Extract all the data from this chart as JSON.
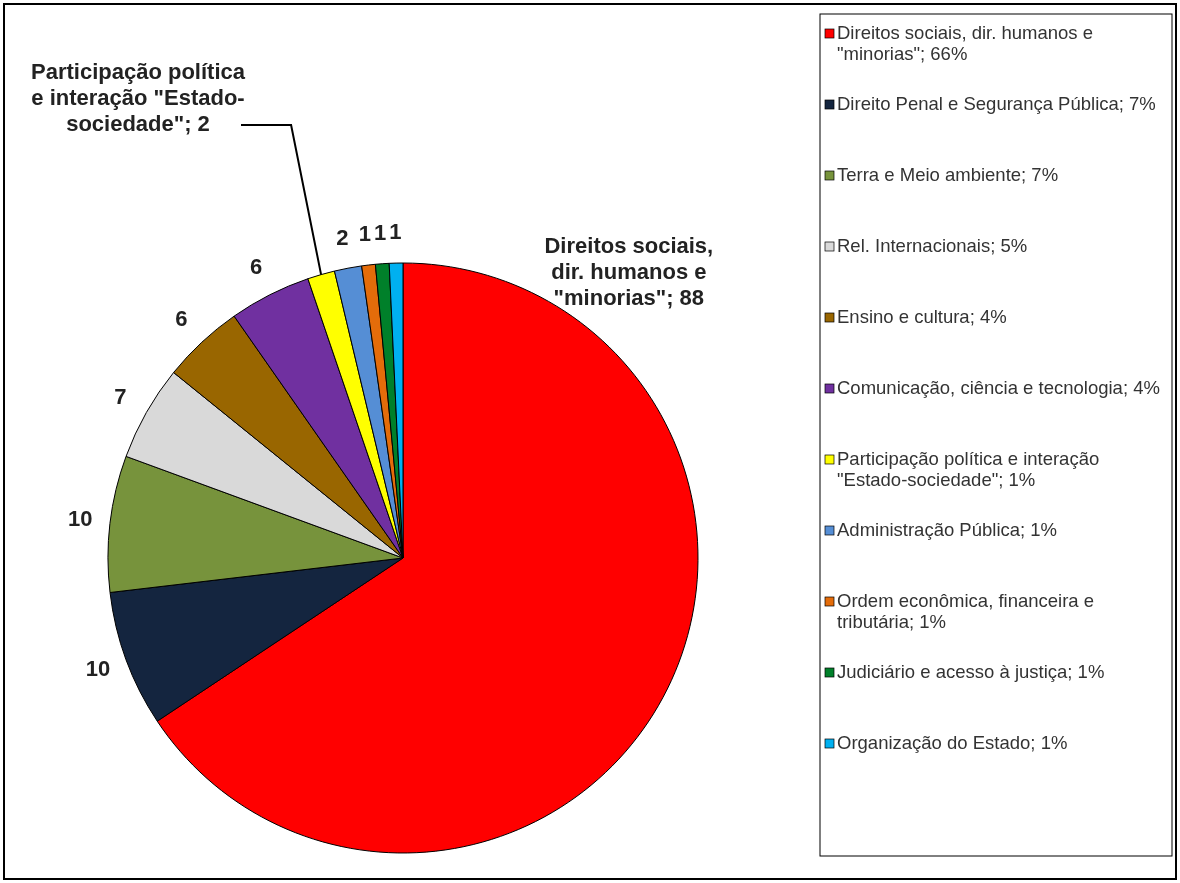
{
  "chart_data": {
    "type": "pie",
    "categories": [
      "Direitos sociais, dir. humanos e \"minorias\"; 66%",
      "Direito Penal e Segurança Pública; 7%",
      "Terra e Meio ambiente; 7%",
      "Rel. Internacionais; 5%",
      "Ensino e cultura; 4%",
      "Comunicação, ciência e tecnologia; 4%",
      "Participação política e interação \"Estado-sociedade\"; 1%",
      "Administração Pública; 1%",
      "Ordem econômica, financeira e tributária; 1%",
      "Judiciário e acesso à justiça; 1%",
      "Organização do Estado; 1%"
    ],
    "values": [
      88,
      10,
      10,
      7,
      6,
      6,
      2,
      2,
      1,
      1,
      1
    ],
    "colors": [
      "#ff0000",
      "#14253f",
      "#77933c",
      "#d9d9d9",
      "#996600",
      "#7030a0",
      "#ffff00",
      "#558ed5",
      "#e46c0a",
      "#00802a",
      "#00b0f0"
    ],
    "value_labels": [
      "Direitos sociais, dir. humanos e \"minorias\"; 88",
      "10",
      "10",
      "7",
      "6",
      "6",
      "Participação política e interação \"Estado-sociedade\"; 2",
      "2",
      "1",
      "1",
      "1"
    ],
    "legend": "right"
  }
}
